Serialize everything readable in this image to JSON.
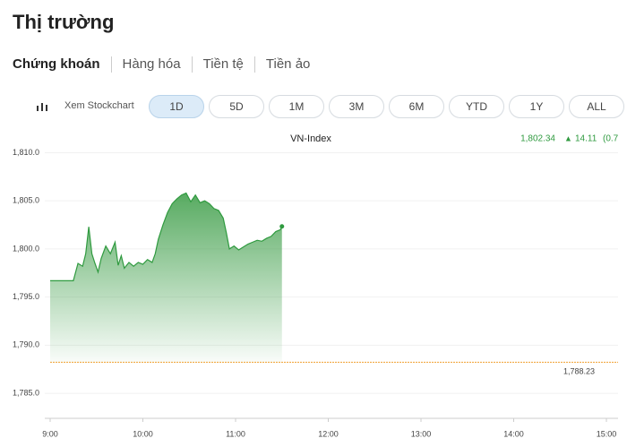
{
  "header": {
    "title": "Thị trường"
  },
  "tabs": [
    "Chứng khoán",
    "Hàng hóa",
    "Tiền tệ",
    "Tiền ảo"
  ],
  "stockchart_link": "Xem Stockchart",
  "ranges": [
    "1D",
    "5D",
    "1M",
    "3M",
    "6M",
    "YTD",
    "1Y",
    "ALL"
  ],
  "quote": {
    "last_price": "1,802.34",
    "change": "14.11",
    "change_pct": "(0.7"
  },
  "chart_data": {
    "type": "area",
    "title": "VN-Index",
    "x": [
      540,
      555,
      558,
      561,
      563,
      565,
      567,
      569,
      571,
      573,
      576,
      579,
      582,
      584,
      586,
      588,
      591,
      594,
      597,
      600,
      603,
      606,
      608,
      610,
      613,
      616,
      619,
      622,
      625,
      628,
      631,
      634,
      637,
      640,
      643,
      646,
      649,
      652,
      654,
      656,
      659,
      662,
      665,
      668,
      671,
      674,
      677,
      680,
      683,
      686,
      689,
      690
    ],
    "series": [
      {
        "name": "VN-Index",
        "color": "#2f9a3f",
        "values": [
          1796.7,
          1796.7,
          1798.5,
          1798.2,
          1799.5,
          1802.3,
          1799.5,
          1798.5,
          1797.6,
          1799.0,
          1800.3,
          1799.5,
          1800.7,
          1798.3,
          1799.3,
          1798.0,
          1798.6,
          1798.2,
          1798.6,
          1798.4,
          1798.9,
          1798.6,
          1799.5,
          1801.0,
          1802.5,
          1803.8,
          1804.7,
          1805.2,
          1805.6,
          1805.8,
          1804.9,
          1805.6,
          1804.8,
          1805.0,
          1804.7,
          1804.2,
          1804.0,
          1803.2,
          1801.7,
          1800.0,
          1800.3,
          1799.9,
          1800.2,
          1800.5,
          1800.7,
          1800.9,
          1800.8,
          1801.1,
          1801.3,
          1801.8,
          1802.0,
          1802.34
        ]
      }
    ],
    "reference": {
      "value": 1788.23,
      "label": "1,788.23",
      "color": "#f0a030"
    },
    "xlim": [
      540,
      900
    ],
    "xticks": [
      {
        "value": 540,
        "label": "9:00"
      },
      {
        "value": 600,
        "label": "10:00"
      },
      {
        "value": 660,
        "label": "11:00"
      },
      {
        "value": 720,
        "label": "12:00"
      },
      {
        "value": 780,
        "label": "13:00"
      },
      {
        "value": 840,
        "label": "14:00"
      },
      {
        "value": 900,
        "label": "15:00"
      }
    ],
    "ylim": [
      1782.4,
      1810.6
    ],
    "yticks": [
      {
        "value": 1785,
        "label": "1,785.0"
      },
      {
        "value": 1790,
        "label": "1,790.0"
      },
      {
        "value": 1795,
        "label": "1,795.0"
      },
      {
        "value": 1800,
        "label": "1,800.0"
      },
      {
        "value": 1805,
        "label": "1,805.0"
      },
      {
        "value": 1810,
        "label": "1,810.0"
      }
    ],
    "grid": true
  }
}
